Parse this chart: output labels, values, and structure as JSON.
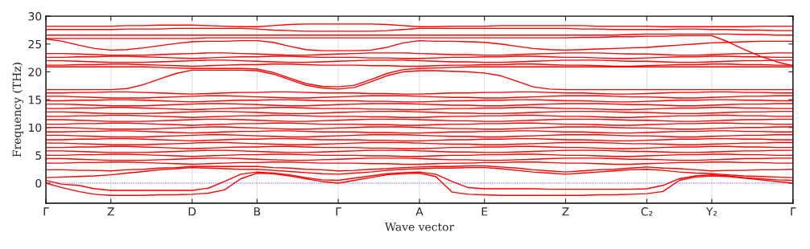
{
  "chart_data": {
    "type": "line",
    "xlabel": "Wave vector",
    "ylabel": "Frequency (THz)",
    "categories": [
      "Γ",
      null,
      null,
      null,
      "Z",
      null,
      null,
      null,
      null,
      "D",
      null,
      null,
      null,
      "B",
      null,
      null,
      null,
      null,
      "Γ",
      null,
      null,
      null,
      null,
      "A",
      null,
      null,
      null,
      "E",
      null,
      null,
      null,
      null,
      "Z",
      null,
      null,
      null,
      null,
      "C₂",
      null,
      null,
      null,
      "Y₂",
      null,
      null,
      null,
      null,
      "Γ"
    ],
    "ylim": [
      -3.6,
      30
    ],
    "yticks": [
      0,
      5,
      10,
      15,
      20,
      25,
      30
    ],
    "grid": "x",
    "marker": "none",
    "line_style": "solid",
    "ref_lines": [
      {
        "axis": "y",
        "value": 0,
        "color": "#0000ff",
        "line_style": "dotted"
      }
    ],
    "series": [
      {
        "color": "#ff0000",
        "values": [
          0,
          -0.8,
          -1.5,
          -2.0,
          -2.2,
          -2.2,
          -2.2,
          -2.1,
          -2.1,
          -2.0,
          -1.8,
          -1.2,
          0.8,
          1.8,
          1.7,
          1.3,
          0.8,
          0.3,
          0,
          0.5,
          1.0,
          1.5,
          1.7,
          1.8,
          1.2,
          -1.6,
          -2.0,
          -2.1,
          -2.2,
          -2.2,
          -2.2,
          -2.2,
          -2.2,
          -2.2,
          -2.1,
          -2.1,
          -2.0,
          -1.9,
          -1.5,
          0.5,
          1.1,
          1.3,
          1.2,
          0.9,
          0.6,
          0.3,
          0
        ]
      },
      {
        "color": "#ff0000",
        "values": [
          0.5,
          -0.2,
          -0.4,
          -1.0,
          -1.3,
          -1.3,
          -1.3,
          -1.3,
          -1.3,
          -1.3,
          -0.9,
          0.3,
          1.6,
          2.0,
          1.8,
          1.5,
          1.0,
          0.6,
          0.5,
          0.9,
          1.3,
          1.7,
          1.9,
          2.0,
          1.6,
          0.3,
          -0.8,
          -1.0,
          -1.0,
          -1.0,
          -1.0,
          -1.1,
          -1.1,
          -1.1,
          -1.1,
          -1.1,
          -1.1,
          -1.0,
          -0.4,
          0.8,
          1.3,
          1.5,
          1.3,
          1.0,
          0.8,
          0.6,
          0.5
        ]
      },
      {
        "color": "#ff0000",
        "values": [
          1.0,
          1.1,
          1.2,
          1.3,
          1.5,
          1.8,
          2.1,
          2.4,
          2.6,
          2.8,
          2.7,
          2.6,
          2.5,
          2.5,
          2.3,
          2.1,
          1.9,
          1.7,
          1.6,
          1.8,
          2.0,
          2.3,
          2.5,
          2.6,
          2.7,
          2.7,
          2.8,
          2.8,
          2.6,
          2.3,
          2.0,
          1.8,
          1.6,
          1.8,
          2.0,
          2.2,
          2.4,
          2.5,
          2.3,
          2.0,
          1.8,
          1.7,
          1.5,
          1.3,
          1.2,
          1.1,
          1.0
        ]
      },
      {
        "color": "#ff0000",
        "values": [
          2.4,
          2.4,
          2.3,
          2.3,
          2.2,
          2.4,
          2.5,
          2.7,
          2.8,
          3.0,
          3.0,
          3.0,
          3.0,
          3.0,
          2.8,
          2.7,
          2.5,
          2.4,
          2.2,
          2.3,
          2.5,
          2.6,
          2.8,
          2.9,
          3.0,
          3.0,
          3.1,
          3.1,
          2.9,
          2.7,
          2.4,
          2.2,
          2.0,
          2.2,
          2.4,
          2.5,
          2.7,
          2.9,
          2.7,
          2.6,
          2.4,
          2.2,
          2.3,
          2.3,
          2.4,
          2.4,
          2.5
        ]
      },
      {
        "color": "#ff0000",
        "values": [
          3.6,
          3.6,
          3.7,
          3.7,
          3.8,
          3.8,
          3.7,
          3.6,
          3.5,
          3.4,
          3.5,
          3.6,
          3.7,
          3.7,
          3.8,
          3.8,
          3.7,
          3.6,
          3.6,
          3.6,
          3.5,
          3.5,
          3.4,
          3.4,
          3.5,
          3.6,
          3.6,
          3.7,
          3.7,
          3.8,
          3.8,
          3.7,
          3.6,
          3.6,
          3.5,
          3.4,
          3.4,
          3.5,
          3.6,
          3.7,
          3.7,
          3.8,
          3.8,
          3.7,
          3.7,
          3.6,
          3.6
        ]
      },
      {
        "color": "#ff0000",
        "values": [
          4.4,
          4.4,
          4.3,
          4.2,
          4.1,
          4.1,
          4.1,
          4.2,
          4.3,
          4.4,
          4.5,
          4.5,
          4.4,
          4.3,
          4.2,
          4.1,
          4.1,
          4.2,
          4.3,
          4.4,
          4.5,
          4.5,
          4.5,
          4.4,
          4.3,
          4.2,
          4.2,
          4.1,
          4.1,
          4.2,
          4.3,
          4.4,
          4.5,
          4.5,
          4.5,
          4.4,
          4.3,
          4.3,
          4.2,
          4.1,
          4.1,
          4.2,
          4.3,
          4.4,
          4.4,
          4.5,
          4.5
        ]
      },
      {
        "color": "#ff0000",
        "values": [
          5.0,
          5.0,
          5.1,
          5.1,
          5.2,
          5.2,
          5.1,
          5.0,
          4.9,
          4.8,
          4.9,
          5.0,
          5.1,
          5.1,
          5.2,
          5.2,
          5.1,
          5.0,
          5.0,
          5.0,
          4.9,
          4.9,
          4.8,
          4.8,
          4.9,
          5.0,
          5.0,
          5.1,
          5.1,
          5.2,
          5.2,
          5.1,
          5.0,
          5.0,
          4.9,
          4.8,
          4.8,
          4.9,
          5.0,
          5.1,
          5.1,
          5.2,
          5.2,
          5.1,
          5.1,
          5.0,
          5.0
        ]
      },
      {
        "color": "#ff0000",
        "values": [
          5.8,
          5.8,
          5.7,
          5.6,
          5.5,
          5.5,
          5.5,
          5.6,
          5.7,
          5.8,
          5.9,
          5.9,
          5.8,
          5.7,
          5.6,
          5.5,
          5.5,
          5.6,
          5.7,
          5.8,
          5.9,
          5.9,
          5.9,
          5.8,
          5.7,
          5.6,
          5.6,
          5.5,
          5.5,
          5.6,
          5.7,
          5.8,
          5.9,
          5.9,
          5.9,
          5.8,
          5.7,
          5.7,
          5.6,
          5.5,
          5.5,
          5.6,
          5.7,
          5.8,
          5.8,
          5.9,
          5.9
        ]
      },
      {
        "color": "#ff0000",
        "values": [
          6.4,
          6.4,
          6.5,
          6.5,
          6.6,
          6.6,
          6.5,
          6.4,
          6.3,
          6.2,
          6.3,
          6.4,
          6.5,
          6.5,
          6.6,
          6.6,
          6.5,
          6.4,
          6.4,
          6.4,
          6.3,
          6.3,
          6.2,
          6.2,
          6.3,
          6.4,
          6.4,
          6.5,
          6.5,
          6.6,
          6.6,
          6.5,
          6.4,
          6.4,
          6.3,
          6.2,
          6.2,
          6.3,
          6.4,
          6.5,
          6.5,
          6.6,
          6.6,
          6.5,
          6.5,
          6.4,
          6.4
        ]
      },
      {
        "color": "#ff0000",
        "values": [
          7.2,
          7.2,
          7.1,
          7.0,
          6.9,
          6.9,
          6.9,
          7.0,
          7.1,
          7.2,
          7.3,
          7.3,
          7.2,
          7.1,
          7.0,
          6.9,
          6.9,
          7.0,
          7.1,
          7.2,
          7.3,
          7.3,
          7.3,
          7.2,
          7.1,
          7.0,
          7.0,
          6.9,
          6.9,
          7.0,
          7.1,
          7.2,
          7.3,
          7.3,
          7.3,
          7.2,
          7.1,
          7.1,
          7.0,
          6.9,
          6.9,
          7.0,
          7.1,
          7.2,
          7.2,
          7.3,
          7.3
        ]
      },
      {
        "color": "#ff0000",
        "values": [
          7.8,
          7.8,
          7.9,
          7.9,
          8.0,
          8.0,
          7.9,
          7.8,
          7.7,
          7.6,
          7.7,
          7.8,
          7.9,
          7.9,
          8.0,
          8.0,
          7.9,
          7.8,
          7.8,
          7.8,
          7.7,
          7.7,
          7.6,
          7.6,
          7.7,
          7.8,
          7.8,
          7.9,
          7.9,
          8.0,
          8.0,
          7.9,
          7.8,
          7.8,
          7.7,
          7.6,
          7.6,
          7.7,
          7.8,
          7.9,
          7.9,
          8.0,
          8.0,
          7.9,
          7.9,
          7.8,
          7.8
        ]
      },
      {
        "color": "#ff0000",
        "values": [
          8.6,
          8.6,
          8.5,
          8.4,
          8.3,
          8.3,
          8.3,
          8.4,
          8.5,
          8.6,
          8.7,
          8.7,
          8.6,
          8.5,
          8.4,
          8.3,
          8.3,
          8.4,
          8.5,
          8.6,
          8.7,
          8.7,
          8.7,
          8.6,
          8.5,
          8.4,
          8.4,
          8.3,
          8.3,
          8.4,
          8.5,
          8.6,
          8.7,
          8.7,
          8.7,
          8.6,
          8.5,
          8.5,
          8.4,
          8.3,
          8.3,
          8.4,
          8.5,
          8.6,
          8.6,
          8.7,
          8.7
        ]
      },
      {
        "color": "#ff0000",
        "values": [
          9.2,
          9.2,
          9.3,
          9.3,
          9.4,
          9.4,
          9.3,
          9.2,
          9.1,
          9.0,
          9.1,
          9.2,
          9.3,
          9.3,
          9.4,
          9.4,
          9.3,
          9.2,
          9.2,
          9.2,
          9.1,
          9.1,
          9.0,
          9.0,
          9.1,
          9.2,
          9.2,
          9.3,
          9.3,
          9.4,
          9.4,
          9.3,
          9.2,
          9.2,
          9.1,
          9.0,
          9.0,
          9.1,
          9.2,
          9.3,
          9.3,
          9.4,
          9.4,
          9.3,
          9.3,
          9.2,
          9.2
        ]
      },
      {
        "color": "#ff0000",
        "values": [
          10.0,
          10.0,
          9.9,
          9.8,
          9.7,
          9.7,
          9.7,
          9.8,
          9.9,
          10.0,
          10.1,
          10.1,
          10.0,
          9.9,
          9.8,
          9.7,
          9.7,
          9.8,
          9.9,
          10.0,
          10.1,
          10.1,
          10.1,
          10.0,
          9.9,
          9.8,
          9.8,
          9.7,
          9.7,
          9.8,
          9.9,
          10.0,
          10.1,
          10.1,
          10.1,
          10.0,
          9.9,
          9.9,
          9.8,
          9.7,
          9.7,
          9.8,
          9.9,
          10.0,
          10.0,
          10.1,
          10.1
        ]
      },
      {
        "color": "#ff0000",
        "values": [
          10.6,
          10.6,
          10.7,
          10.7,
          10.8,
          10.8,
          10.7,
          10.6,
          10.5,
          10.4,
          10.5,
          10.6,
          10.7,
          10.7,
          10.8,
          10.8,
          10.7,
          10.6,
          10.6,
          10.6,
          10.5,
          10.5,
          10.4,
          10.4,
          10.5,
          10.6,
          10.6,
          10.7,
          10.7,
          10.8,
          10.8,
          10.7,
          10.6,
          10.6,
          10.5,
          10.4,
          10.4,
          10.5,
          10.6,
          10.7,
          10.7,
          10.8,
          10.8,
          10.7,
          10.7,
          10.6,
          10.6
        ]
      },
      {
        "color": "#ff0000",
        "values": [
          11.4,
          11.4,
          11.3,
          11.2,
          11.1,
          11.1,
          11.1,
          11.2,
          11.3,
          11.4,
          11.5,
          11.5,
          11.4,
          11.3,
          11.2,
          11.1,
          11.1,
          11.2,
          11.3,
          11.4,
          11.5,
          11.5,
          11.5,
          11.4,
          11.3,
          11.2,
          11.2,
          11.1,
          11.1,
          11.2,
          11.3,
          11.4,
          11.5,
          11.5,
          11.5,
          11.4,
          11.3,
          11.3,
          11.2,
          11.1,
          11.1,
          11.2,
          11.3,
          11.4,
          11.4,
          11.5,
          11.5
        ]
      },
      {
        "color": "#ff0000",
        "values": [
          12.0,
          12.0,
          12.1,
          12.1,
          12.2,
          12.2,
          12.1,
          12.0,
          11.9,
          11.8,
          11.9,
          12.0,
          12.1,
          12.1,
          12.2,
          12.2,
          12.1,
          12.0,
          12.0,
          12.0,
          11.9,
          11.9,
          11.8,
          11.8,
          11.9,
          12.0,
          12.0,
          12.1,
          12.1,
          12.2,
          12.2,
          12.1,
          12.0,
          12.0,
          11.9,
          11.8,
          11.8,
          11.9,
          12.0,
          12.1,
          12.1,
          12.2,
          12.2,
          12.1,
          12.1,
          12.0,
          12.0
        ]
      },
      {
        "color": "#ff0000",
        "values": [
          12.8,
          12.8,
          12.7,
          12.6,
          12.5,
          12.5,
          12.5,
          12.6,
          12.7,
          12.8,
          12.9,
          12.9,
          12.8,
          12.7,
          12.6,
          12.5,
          12.5,
          12.6,
          12.7,
          12.8,
          12.9,
          12.9,
          12.9,
          12.8,
          12.7,
          12.6,
          12.6,
          12.5,
          12.5,
          12.6,
          12.7,
          12.8,
          12.9,
          12.9,
          12.9,
          12.8,
          12.7,
          12.7,
          12.6,
          12.5,
          12.5,
          12.6,
          12.7,
          12.8,
          12.8,
          12.9,
          12.9
        ]
      },
      {
        "color": "#ff0000",
        "values": [
          13.4,
          13.4,
          13.5,
          13.5,
          13.6,
          13.6,
          13.5,
          13.4,
          13.3,
          13.2,
          13.3,
          13.4,
          13.5,
          13.5,
          13.6,
          13.6,
          13.5,
          13.4,
          13.4,
          13.4,
          13.3,
          13.3,
          13.2,
          13.2,
          13.3,
          13.4,
          13.4,
          13.5,
          13.5,
          13.6,
          13.6,
          13.5,
          13.4,
          13.4,
          13.3,
          13.2,
          13.2,
          13.3,
          13.4,
          13.5,
          13.5,
          13.6,
          13.6,
          13.5,
          13.5,
          13.4,
          13.4
        ]
      },
      {
        "color": "#ff0000",
        "values": [
          14.2,
          14.2,
          14.1,
          14.0,
          13.9,
          13.9,
          13.9,
          14.0,
          14.1,
          14.2,
          14.3,
          14.3,
          14.2,
          14.1,
          14.0,
          13.9,
          13.9,
          14.0,
          14.1,
          14.2,
          14.3,
          14.3,
          14.3,
          14.2,
          14.1,
          14.0,
          14.0,
          13.9,
          13.9,
          14.0,
          14.1,
          14.2,
          14.3,
          14.3,
          14.3,
          14.2,
          14.1,
          14.1,
          14.0,
          13.9,
          13.9,
          14.0,
          14.1,
          14.2,
          14.2,
          14.3,
          14.3
        ]
      },
      {
        "color": "#ff0000",
        "values": [
          14.8,
          14.8,
          14.9,
          14.9,
          15.0,
          15.0,
          14.9,
          14.8,
          14.7,
          14.6,
          14.7,
          14.8,
          14.9,
          14.9,
          15.0,
          15.0,
          14.9,
          14.8,
          14.8,
          14.8,
          14.7,
          14.7,
          14.6,
          14.6,
          14.7,
          14.8,
          14.8,
          14.9,
          14.9,
          15.0,
          15.0,
          14.9,
          14.8,
          14.8,
          14.7,
          14.6,
          14.6,
          14.7,
          14.8,
          14.9,
          14.9,
          15.0,
          15.0,
          14.9,
          14.9,
          14.8,
          14.8
        ]
      },
      {
        "color": "#ff0000",
        "values": [
          15.6,
          15.6,
          15.5,
          15.4,
          15.3,
          15.3,
          15.3,
          15.4,
          15.5,
          15.6,
          15.7,
          15.7,
          15.6,
          15.5,
          15.4,
          15.3,
          15.3,
          15.4,
          15.5,
          15.6,
          15.7,
          15.7,
          15.7,
          15.6,
          15.5,
          15.4,
          15.4,
          15.3,
          15.3,
          15.4,
          15.5,
          15.6,
          15.7,
          15.7,
          15.7,
          15.6,
          15.5,
          15.5,
          15.4,
          15.3,
          15.3,
          15.4,
          15.5,
          15.6,
          15.6,
          15.7,
          15.7
        ]
      },
      {
        "color": "#ff0000",
        "values": [
          16.2,
          16.2,
          16.3,
          16.3,
          16.4,
          16.4,
          16.3,
          16.2,
          16.1,
          16.0,
          16.1,
          16.2,
          16.3,
          16.3,
          16.4,
          16.4,
          16.3,
          16.2,
          16.2,
          16.2,
          16.1,
          16.1,
          16.0,
          16.0,
          16.1,
          16.2,
          16.2,
          16.3,
          16.3,
          16.4,
          16.4,
          16.3,
          16.2,
          16.2,
          16.1,
          16.0,
          16.0,
          16.1,
          16.2,
          16.3,
          16.3,
          16.4,
          16.4,
          16.3,
          16.3,
          16.2,
          16.2
        ]
      },
      {
        "color": "#ff0000",
        "values": [
          16.8,
          16.8,
          16.8,
          16.8,
          16.8,
          17.0,
          17.7,
          18.7,
          19.7,
          20.3,
          20.3,
          20.3,
          20.3,
          20.2,
          19.6,
          18.6,
          17.6,
          17.1,
          16.9,
          17.2,
          18.2,
          19.3,
          20.0,
          20.2,
          20.2,
          20.1,
          20.0,
          19.8,
          19.3,
          18.3,
          17.3,
          16.9,
          16.8,
          16.8,
          16.8,
          16.8,
          16.8,
          16.8,
          16.8,
          16.8,
          16.8,
          16.8,
          16.8,
          16.8,
          16.8,
          16.8,
          16.8
        ]
      },
      {
        "color": "#ff0000",
        "values": [
          20.9,
          20.9,
          20.9,
          20.9,
          20.9,
          20.9,
          20.9,
          20.8,
          20.7,
          20.6,
          20.6,
          20.6,
          20.6,
          20.5,
          19.9,
          18.9,
          17.9,
          17.4,
          17.3,
          17.6,
          18.6,
          19.7,
          20.4,
          20.6,
          20.7,
          20.8,
          20.9,
          20.9,
          20.9,
          20.9,
          20.9,
          20.9,
          20.9,
          20.9,
          20.9,
          20.9,
          20.9,
          20.9,
          20.9,
          20.9,
          20.9,
          20.9,
          20.9,
          20.9,
          20.9,
          20.9,
          20.9
        ]
      },
      {
        "color": "#ff0000",
        "values": [
          21.2,
          21.2,
          21.3,
          21.3,
          21.4,
          21.4,
          21.3,
          21.2,
          21.1,
          21.0,
          21.1,
          21.2,
          21.3,
          21.3,
          21.4,
          21.4,
          21.3,
          21.2,
          21.2,
          21.2,
          21.1,
          21.1,
          21.0,
          21.0,
          21.1,
          21.2,
          21.2,
          21.3,
          21.3,
          21.4,
          21.4,
          21.3,
          21.2,
          21.2,
          21.1,
          21.0,
          21.0,
          21.1,
          21.2,
          21.3,
          21.3,
          21.4,
          21.4,
          21.3,
          21.3,
          21.2,
          21.2
        ]
      },
      {
        "color": "#ff0000",
        "values": [
          22.0,
          22.0,
          21.9,
          21.8,
          21.7,
          21.7,
          21.7,
          21.8,
          21.9,
          22.0,
          22.1,
          22.1,
          22.0,
          21.9,
          21.8,
          21.7,
          21.7,
          21.8,
          21.9,
          22.0,
          22.1,
          22.1,
          22.1,
          22.0,
          21.9,
          21.8,
          21.8,
          21.7,
          21.7,
          21.8,
          21.9,
          22.0,
          22.1,
          22.1,
          22.1,
          22.0,
          21.9,
          21.9,
          21.8,
          21.7,
          21.7,
          21.8,
          21.9,
          22.0,
          22.0,
          22.1,
          22.1
        ]
      },
      {
        "color": "#ff0000",
        "values": [
          22.6,
          22.6,
          22.7,
          22.7,
          22.8,
          22.8,
          22.7,
          22.6,
          22.5,
          22.4,
          22.5,
          22.6,
          22.7,
          22.7,
          22.8,
          22.8,
          22.7,
          22.6,
          22.6,
          22.6,
          22.5,
          22.5,
          22.4,
          22.4,
          22.5,
          22.6,
          22.6,
          22.7,
          22.7,
          22.8,
          22.8,
          22.7,
          22.6,
          22.6,
          22.5,
          22.4,
          22.4,
          22.5,
          22.6,
          22.7,
          22.7,
          22.8,
          22.8,
          22.7,
          22.7,
          22.6,
          22.6
        ]
      },
      {
        "color": "#ff0000",
        "values": [
          23.3,
          23.3,
          23.2,
          23.1,
          23.0,
          23.0,
          23.0,
          23.1,
          23.2,
          23.3,
          23.4,
          23.4,
          23.3,
          23.2,
          23.1,
          23.0,
          23.0,
          23.1,
          23.2,
          23.3,
          23.4,
          23.4,
          23.4,
          23.3,
          23.2,
          23.1,
          23.1,
          23.0,
          23.0,
          23.1,
          23.2,
          23.3,
          23.4,
          23.4,
          23.4,
          23.3,
          23.2,
          23.2,
          23.1,
          23.0,
          23.0,
          23.1,
          23.2,
          23.3,
          23.3,
          23.4,
          23.4
        ]
      },
      {
        "color": "#ff0000",
        "values": [
          25.9,
          25.5,
          24.8,
          24.2,
          23.9,
          24.0,
          24.3,
          24.7,
          25.1,
          25.4,
          25.5,
          25.5,
          25.6,
          25.6,
          25.3,
          24.6,
          24.0,
          23.8,
          23.8,
          23.8,
          23.9,
          24.4,
          25.2,
          25.6,
          25.5,
          25.5,
          25.4,
          25.3,
          25.0,
          24.6,
          24.2,
          24.0,
          23.9,
          24.0,
          24.1,
          24.2,
          24.3,
          24.4,
          24.6,
          24.8,
          25.0,
          25.2,
          25.3,
          25.4,
          25.5,
          25.5,
          25.5
        ]
      },
      {
        "color": "#ff0000",
        "values": [
          26.0,
          26.0,
          26.0,
          26.0,
          26.0,
          26.0,
          26.0,
          26.0,
          26.0,
          26.0,
          26.1,
          26.1,
          26.1,
          26.1,
          26.1,
          26.1,
          26.1,
          26.1,
          26.1,
          26.1,
          26.1,
          26.1,
          26.1,
          26.1,
          26.1,
          26.1,
          26.1,
          26.1,
          26.1,
          26.1,
          26.1,
          26.1,
          26.1,
          26.2,
          26.2,
          26.3,
          26.3,
          26.4,
          26.4,
          26.5,
          26.5,
          26.5,
          25.4,
          24.0,
          22.8,
          21.8,
          21.1
        ]
      },
      {
        "color": "#ff0000",
        "values": [
          26.6,
          26.6,
          26.6,
          26.6,
          26.6,
          26.6,
          26.6,
          26.6,
          26.6,
          26.6,
          26.6,
          26.6,
          26.6,
          26.6,
          26.6,
          26.6,
          26.6,
          26.6,
          26.6,
          26.6,
          26.6,
          26.6,
          26.6,
          26.6,
          26.6,
          26.6,
          26.6,
          26.6,
          26.6,
          26.6,
          26.6,
          26.6,
          26.6,
          26.6,
          26.6,
          26.6,
          26.7,
          26.8,
          26.8,
          26.8,
          26.8,
          26.8,
          26.8,
          26.7,
          26.7,
          26.6,
          26.6
        ]
      },
      {
        "color": "#ff0000",
        "values": [
          27.6,
          27.6,
          27.6,
          27.6,
          27.6,
          27.7,
          27.7,
          27.7,
          27.8,
          27.8,
          27.8,
          27.8,
          27.8,
          27.7,
          27.5,
          27.4,
          27.3,
          27.3,
          27.3,
          27.3,
          27.3,
          27.4,
          27.6,
          27.8,
          27.8,
          27.8,
          27.8,
          27.8,
          27.8,
          27.8,
          27.8,
          27.8,
          27.8,
          27.7,
          27.7,
          27.6,
          27.6,
          27.6,
          27.6,
          27.7,
          27.7,
          27.6,
          27.6,
          27.5,
          27.5,
          27.4,
          27.4
        ]
      },
      {
        "color": "#ff0000",
        "values": [
          28.2,
          28.2,
          28.2,
          28.2,
          28.2,
          28.3,
          28.3,
          28.4,
          28.4,
          28.4,
          28.3,
          28.2,
          28.1,
          28.1,
          28.3,
          28.5,
          28.6,
          28.6,
          28.6,
          28.6,
          28.6,
          28.5,
          28.3,
          28.1,
          28.1,
          28.2,
          28.2,
          28.2,
          28.3,
          28.3,
          28.3,
          28.3,
          28.3,
          28.3,
          28.2,
          28.2,
          28.2,
          28.2,
          28.1,
          28.1,
          28.1,
          28.1,
          28.1,
          28.1,
          28.2,
          28.2,
          28.2
        ]
      }
    ]
  }
}
